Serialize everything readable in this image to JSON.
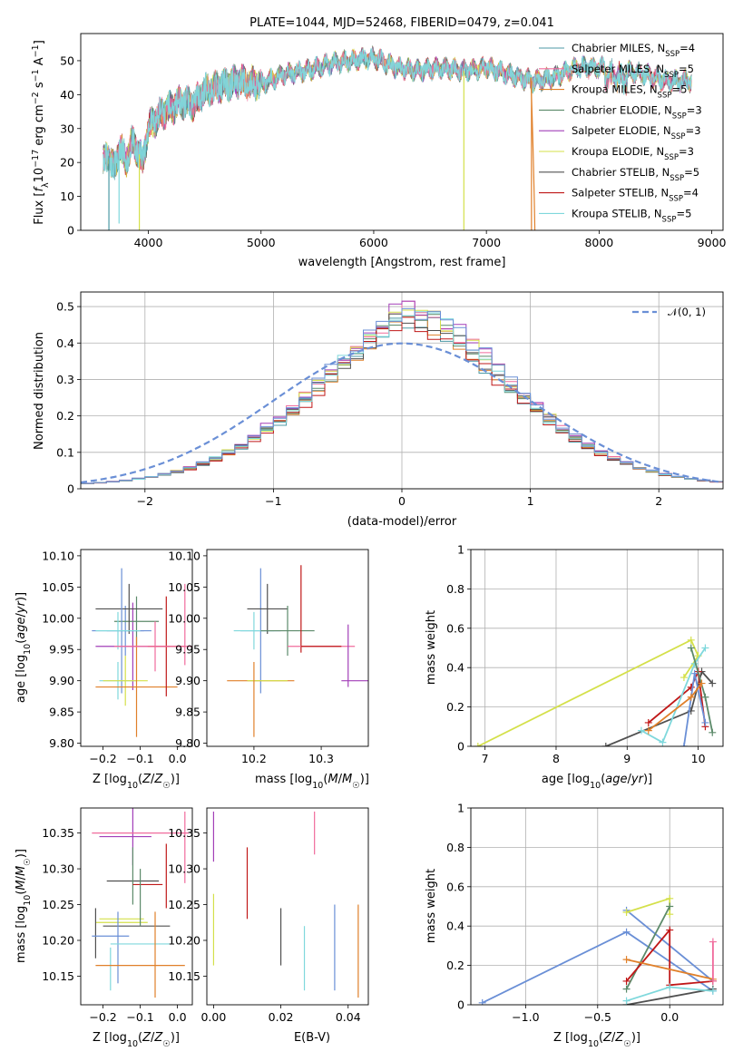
{
  "colors": {
    "c0": "#4c9aa6",
    "c1": "#f06b9c",
    "c2": "#e0802a",
    "c3": "#5c8a6a",
    "c4": "#a23fb8",
    "c5": "#d4e04a",
    "c6": "#505050",
    "c7": "#c01818",
    "c8": "#7fd8dc",
    "c9": "#6a8fd6",
    "normal": "#6a8fd6"
  },
  "chart_data": [
    {
      "type": "line",
      "title": "PLATE=1044, MJD=52468, FIBERID=0479, z=0.041",
      "xlabel": "wavelength [Angstrom, rest frame]",
      "ylabel": "Flux [f_λ 10^-17 erg cm^-2 s^-1 A^-1]",
      "xlim": [
        3400,
        9100
      ],
      "ylim": [
        0,
        58
      ],
      "xticks": [
        4000,
        5000,
        6000,
        7000,
        8000,
        9000
      ],
      "yticks": [
        0,
        10,
        20,
        30,
        40,
        50
      ],
      "legend_position": "top-right",
      "legend": [
        {
          "name": "Chabrier MILES, N",
          "nssp": 4,
          "color": "c0"
        },
        {
          "name": "Salpeter MILES, N",
          "nssp": 5,
          "color": "c1"
        },
        {
          "name": "Kroupa MILES, N",
          "nssp": 5,
          "color": "c2"
        },
        {
          "name": "Chabrier ELODIE, N",
          "nssp": 3,
          "color": "c3"
        },
        {
          "name": "Salpeter ELODIE, N",
          "nssp": 3,
          "color": "c4"
        },
        {
          "name": "Kroupa ELODIE, N",
          "nssp": 3,
          "color": "c5"
        },
        {
          "name": "Chabrier STELIB, N",
          "nssp": 5,
          "color": "c6"
        },
        {
          "name": "Salpeter STELIB, N",
          "nssp": 4,
          "color": "c7"
        },
        {
          "name": "Kroupa STELIB, N",
          "nssp": 5,
          "color": "c8"
        }
      ],
      "legend_subscript": "SSP",
      "continuum": {
        "x": [
          3600,
          3650,
          3700,
          3750,
          3800,
          3850,
          3900,
          3950,
          4000,
          4100,
          4200,
          4300,
          4400,
          4500,
          4600,
          4800,
          5000,
          5200,
          5400,
          5600,
          5800,
          6000,
          6200,
          6400,
          6600,
          6800,
          7000,
          7200,
          7400,
          7600,
          7800,
          8000,
          8200,
          8400,
          8600,
          8800
        ],
        "y": [
          20,
          22,
          18,
          25,
          20,
          26,
          24,
          20,
          30,
          34,
          36,
          38,
          37,
          41,
          42,
          44,
          43,
          46,
          47,
          49,
          50,
          51,
          48,
          47,
          48,
          47,
          48,
          46,
          44,
          45,
          48,
          48,
          47,
          46,
          44,
          44
        ]
      },
      "sharp_drops": [
        {
          "x": 3650,
          "to": 0
        },
        {
          "x": 3740,
          "to": 2
        },
        {
          "x": 3920,
          "to": 0
        },
        {
          "x": 6800,
          "to": 0
        },
        {
          "x": 7400,
          "to": 0
        }
      ]
    },
    {
      "type": "step",
      "xlabel": "(data-model)/error",
      "ylabel": "Normed distribution",
      "xlim": [
        -2.5,
        2.5
      ],
      "ylim": [
        0,
        0.54
      ],
      "xticks": [
        -2,
        -1,
        0,
        1,
        2
      ],
      "yticks": [
        0.0,
        0.1,
        0.2,
        0.3,
        0.4,
        0.5
      ],
      "grid": true,
      "legend_position": "top-right",
      "normal_curve": {
        "name": "𝒩(0, 1)",
        "mean": 0,
        "std": 1
      },
      "bin_width": 0.1,
      "series": [
        {
          "color": "c0",
          "max": 0.47
        },
        {
          "color": "c1",
          "max": 0.5
        },
        {
          "color": "c2",
          "max": 0.47
        },
        {
          "color": "c3",
          "max": 0.48
        },
        {
          "color": "c4",
          "max": 0.51
        },
        {
          "color": "c5",
          "max": 0.5
        },
        {
          "color": "c6",
          "max": 0.48
        },
        {
          "color": "c7",
          "max": 0.46
        },
        {
          "color": "c8",
          "max": 0.49
        },
        {
          "color": "c9",
          "max": 0.51
        }
      ]
    },
    {
      "type": "scatter",
      "xlabel": "Z [log10(Z/Z☉)]",
      "ylabel": "age  [log10(age/yr)]",
      "xlim": [
        -0.26,
        0.04
      ],
      "ylim": [
        9.795,
        10.11
      ],
      "xticks": [
        -0.2,
        -0.1,
        0.0
      ],
      "xticklabels": [
        "−0.2",
        "−0.1",
        "0.0"
      ],
      "yticks": [
        9.8,
        9.85,
        9.9,
        9.95,
        10.0,
        10.05,
        10.1
      ],
      "yticklabels": [
        "9.80",
        "9.85",
        "9.90",
        "9.95",
        "10.00",
        "10.05",
        "10.10"
      ],
      "points": [
        {
          "x": -0.12,
          "y": 9.955,
          "xerr": 0.1,
          "yerr": 0.07,
          "color": "c4"
        },
        {
          "x": -0.14,
          "y": 9.98,
          "xerr": 0.05,
          "yerr": 0.04,
          "color": "c9"
        },
        {
          "x": -0.11,
          "y": 9.995,
          "xerr": 0.06,
          "yerr": 0.04,
          "color": "c3"
        },
        {
          "x": -0.13,
          "y": 10.015,
          "xerr": 0.09,
          "yerr": 0.04,
          "color": "c6"
        },
        {
          "x": -0.15,
          "y": 9.98,
          "xerr": 0.08,
          "yerr": 0.1,
          "color": "c9"
        },
        {
          "x": -0.16,
          "y": 9.98,
          "xerr": 0.06,
          "yerr": 0.03,
          "color": "c8"
        },
        {
          "x": -0.16,
          "y": 9.9,
          "xerr": 0.05,
          "yerr": 0.03,
          "color": "c8"
        },
        {
          "x": -0.14,
          "y": 9.9,
          "xerr": 0.06,
          "yerr": 0.04,
          "color": "c5"
        },
        {
          "x": -0.11,
          "y": 9.89,
          "xerr": 0.11,
          "yerr": 0.08,
          "color": "c2"
        },
        {
          "x": -0.03,
          "y": 9.955,
          "xerr": 0.05,
          "yerr": 0.08,
          "color": "c7"
        },
        {
          "x": -0.06,
          "y": 9.955,
          "xerr": 0.11,
          "yerr": 0.04,
          "color": "c1"
        },
        {
          "x": 0.02,
          "y": 9.99,
          "xerr": 0.0,
          "yerr": 0.065,
          "color": "c1"
        }
      ]
    },
    {
      "type": "scatter",
      "xlabel": "mass [log10(M/M☉)]",
      "ylabel": "",
      "xlim": [
        10.13,
        10.37
      ],
      "ylim": [
        9.795,
        10.11
      ],
      "xticks": [
        10.2,
        10.3
      ],
      "xticklabels": [
        "10.2",
        "10.3"
      ],
      "yticks": [
        9.8,
        9.85,
        9.9,
        9.95,
        10.0,
        10.05,
        10.1
      ],
      "yticklabels": [
        "9.80",
        "9.85",
        "9.90",
        "9.95",
        "10.00",
        "10.05",
        "10.10"
      ],
      "points": [
        {
          "x": 10.21,
          "y": 9.98,
          "xerr": 0.03,
          "yerr": 0.1,
          "color": "c9"
        },
        {
          "x": 10.2,
          "y": 9.98,
          "xerr": 0.03,
          "yerr": 0.03,
          "color": "c8"
        },
        {
          "x": 10.22,
          "y": 10.015,
          "xerr": 0.03,
          "yerr": 0.04,
          "color": "c6"
        },
        {
          "x": 10.25,
          "y": 9.98,
          "xerr": 0.04,
          "yerr": 0.04,
          "color": "c3"
        },
        {
          "x": 10.27,
          "y": 10.015,
          "xerr": 0.0,
          "yerr": 0.07,
          "color": "c7"
        },
        {
          "x": 10.3,
          "y": 9.955,
          "xerr": 0.05,
          "yerr": 0.0,
          "color": "c1"
        },
        {
          "x": 10.3,
          "y": 9.955,
          "xerr": 0.03,
          "yerr": 0.0,
          "color": "c7"
        },
        {
          "x": 10.21,
          "y": 9.9,
          "xerr": 0.05,
          "yerr": 0.0,
          "color": "c2"
        },
        {
          "x": 10.22,
          "y": 9.9,
          "xerr": 0.03,
          "yerr": 0.0,
          "color": "c5"
        },
        {
          "x": 10.35,
          "y": 9.9,
          "xerr": 0.02,
          "yerr": 0.0,
          "color": "c4"
        },
        {
          "x": 10.34,
          "y": 9.94,
          "xerr": 0.0,
          "yerr": 0.05,
          "color": "c4"
        },
        {
          "x": 10.2,
          "y": 9.87,
          "xerr": 0.0,
          "yerr": 0.06,
          "color": "c2"
        }
      ]
    },
    {
      "type": "line",
      "xlabel": "age  [log10(age/yr)]",
      "ylabel": "mass weight",
      "xlim": [
        6.8,
        10.35
      ],
      "ylim": [
        0,
        1.0
      ],
      "xticks": [
        7,
        8,
        9,
        10
      ],
      "yticks": [
        0.0,
        0.2,
        0.4,
        0.6,
        0.8,
        1.0
      ],
      "grid": true,
      "series": [
        {
          "color": "c5",
          "x": [
            6.9,
            9.9,
            10.0,
            9.8
          ],
          "y": [
            0.0,
            0.54,
            0.46,
            0.35
          ]
        },
        {
          "color": "c6",
          "x": [
            8.7,
            9.9,
            10.05,
            10.2
          ],
          "y": [
            0.0,
            0.18,
            0.38,
            0.32
          ]
        },
        {
          "color": "c7",
          "x": [
            9.3,
            9.9,
            10.0,
            10.1
          ],
          "y": [
            0.12,
            0.3,
            0.38,
            0.1
          ]
        },
        {
          "color": "c9",
          "x": [
            9.8,
            9.95,
            10.1
          ],
          "y": [
            0.0,
            0.37,
            0.12
          ]
        },
        {
          "color": "c8",
          "x": [
            9.2,
            9.5,
            9.95,
            10.1
          ],
          "y": [
            0.08,
            0.02,
            0.42,
            0.5
          ]
        },
        {
          "color": "c3",
          "x": [
            9.9,
            10.1,
            10.2
          ],
          "y": [
            0.5,
            0.25,
            0.07
          ]
        },
        {
          "color": "c2",
          "x": [
            9.3,
            9.9,
            10.05
          ],
          "y": [
            0.08,
            0.25,
            0.32
          ]
        }
      ]
    },
    {
      "type": "scatter",
      "xlabel": "Z [log10(Z/Z☉)]",
      "ylabel": "mass [log10(M/M☉)]",
      "xlim": [
        -0.26,
        0.04
      ],
      "ylim": [
        10.11,
        10.385
      ],
      "xticks": [
        -0.2,
        -0.1,
        0.0
      ],
      "xticklabels": [
        "−0.2",
        "−0.1",
        "0.0"
      ],
      "yticks": [
        10.15,
        10.2,
        10.25,
        10.3,
        10.35
      ],
      "yticklabels": [
        "10.15",
        "10.20",
        "10.25",
        "10.30",
        "10.35"
      ],
      "points": [
        {
          "x": -0.14,
          "y": 10.345,
          "xerr": 0.07,
          "yerr": 0.0,
          "color": "c4"
        },
        {
          "x": -0.12,
          "y": 10.345,
          "xerr": 0.0,
          "yerr": 0.04,
          "color": "c4"
        },
        {
          "x": -0.1,
          "y": 10.35,
          "xerr": 0.13,
          "yerr": 0.0,
          "color": "c1"
        },
        {
          "x": -0.12,
          "y": 10.283,
          "xerr": 0.07,
          "yerr": 0.0,
          "color": "c6"
        },
        {
          "x": -0.12,
          "y": 10.29,
          "xerr": 0.0,
          "yerr": 0.04,
          "color": "c3"
        },
        {
          "x": -0.08,
          "y": 10.278,
          "xerr": 0.04,
          "yerr": 0.0,
          "color": "c7"
        },
        {
          "x": -0.03,
          "y": 10.29,
          "xerr": 0.0,
          "yerr": 0.045,
          "color": "c7"
        },
        {
          "x": -0.15,
          "y": 10.23,
          "xerr": 0.06,
          "yerr": 0.0,
          "color": "c5"
        },
        {
          "x": -0.15,
          "y": 10.225,
          "xerr": 0.07,
          "yerr": 0.0,
          "color": "c5"
        },
        {
          "x": -0.11,
          "y": 10.22,
          "xerr": 0.09,
          "yerr": 0.0,
          "color": "c6"
        },
        {
          "x": -0.22,
          "y": 10.21,
          "xerr": 0.0,
          "yerr": 0.035,
          "color": "c6"
        },
        {
          "x": -0.18,
          "y": 10.206,
          "xerr": 0.05,
          "yerr": 0.0,
          "color": "c9"
        },
        {
          "x": -0.16,
          "y": 10.19,
          "xerr": 0.0,
          "yerr": 0.05,
          "color": "c9"
        },
        {
          "x": -0.1,
          "y": 10.195,
          "xerr": 0.08,
          "yerr": 0.0,
          "color": "c8"
        },
        {
          "x": -0.18,
          "y": 10.16,
          "xerr": 0.0,
          "yerr": 0.03,
          "color": "c8"
        },
        {
          "x": -0.1,
          "y": 10.165,
          "xerr": 0.12,
          "yerr": 0.0,
          "color": "c2"
        },
        {
          "x": -0.06,
          "y": 10.18,
          "xerr": 0.0,
          "yerr": 0.06,
          "color": "c2"
        },
        {
          "x": 0.02,
          "y": 10.33,
          "xerr": 0.0,
          "yerr": 0.05,
          "color": "c1"
        },
        {
          "x": -0.1,
          "y": 10.26,
          "xerr": 0.0,
          "yerr": 0.04,
          "color": "c3"
        }
      ]
    },
    {
      "type": "scatter",
      "xlabel": "E(B-V)",
      "ylabel": "",
      "xlim": [
        -0.002,
        0.046
      ],
      "ylim": [
        10.11,
        10.385
      ],
      "xticks": [
        0.0,
        0.02,
        0.04
      ],
      "xticklabels": [
        "0.00",
        "0.02",
        "0.04"
      ],
      "yticks": [
        10.15,
        10.2,
        10.25,
        10.3,
        10.35
      ],
      "yticklabels": [
        "10.15",
        "10.20",
        "10.25",
        "10.30",
        "10.35"
      ],
      "points": [
        {
          "x": 0.0,
          "y": 10.345,
          "xerr": 0.0,
          "yerr": 0.035,
          "color": "c4"
        },
        {
          "x": 0.0,
          "y": 10.215,
          "xerr": 0.0,
          "yerr": 0.05,
          "color": "c5"
        },
        {
          "x": 0.01,
          "y": 10.28,
          "xerr": 0.0,
          "yerr": 0.05,
          "color": "c7"
        },
        {
          "x": 0.02,
          "y": 10.205,
          "xerr": 0.0,
          "yerr": 0.04,
          "color": "c6"
        },
        {
          "x": 0.027,
          "y": 10.175,
          "xerr": 0.0,
          "yerr": 0.045,
          "color": "c8"
        },
        {
          "x": 0.03,
          "y": 10.35,
          "xerr": 0.0,
          "yerr": 0.03,
          "color": "c1"
        },
        {
          "x": 0.036,
          "y": 10.19,
          "xerr": 0.0,
          "yerr": 0.06,
          "color": "c9"
        },
        {
          "x": 0.043,
          "y": 10.185,
          "xerr": 0.0,
          "yerr": 0.065,
          "color": "c2"
        }
      ]
    },
    {
      "type": "line",
      "xlabel": "Z [log10(Z/Z☉)]",
      "ylabel": "mass weight",
      "xlim": [
        -1.38,
        0.37
      ],
      "ylim": [
        0,
        1.0
      ],
      "xticks": [
        -1.0,
        -0.5,
        0.0
      ],
      "xticklabels": [
        "−1.0",
        "−0.5",
        "0.0"
      ],
      "yticks": [
        0.0,
        0.2,
        0.4,
        0.6,
        0.8,
        1.0
      ],
      "grid": true,
      "series": [
        {
          "color": "c9",
          "x": [
            -1.3,
            -0.3,
            0.3
          ],
          "y": [
            0.01,
            0.37,
            0.07
          ]
        },
        {
          "color": "c9",
          "x": [
            -0.3,
            0.3
          ],
          "y": [
            0.48,
            0.12
          ]
        },
        {
          "color": "c5",
          "x": [
            -0.3,
            0.0,
            0.0
          ],
          "y": [
            0.47,
            0.54,
            0.46
          ]
        },
        {
          "color": "c3",
          "x": [
            -0.3,
            0.0
          ],
          "y": [
            0.08,
            0.5
          ]
        },
        {
          "color": "c6",
          "x": [
            -0.3,
            0.3
          ],
          "y": [
            0.0,
            0.08
          ]
        },
        {
          "color": "c7",
          "x": [
            -0.3,
            0.0,
            0.0,
            0.3
          ],
          "y": [
            0.12,
            0.38,
            0.1,
            0.12
          ]
        },
        {
          "color": "c2",
          "x": [
            -0.3,
            0.3
          ],
          "y": [
            0.23,
            0.13
          ]
        },
        {
          "color": "c8",
          "x": [
            -0.3,
            0.0,
            0.3
          ],
          "y": [
            0.02,
            0.09,
            0.07
          ]
        },
        {
          "color": "c1",
          "x": [
            0.3,
            0.3
          ],
          "y": [
            0.32,
            0.12
          ]
        }
      ]
    }
  ]
}
